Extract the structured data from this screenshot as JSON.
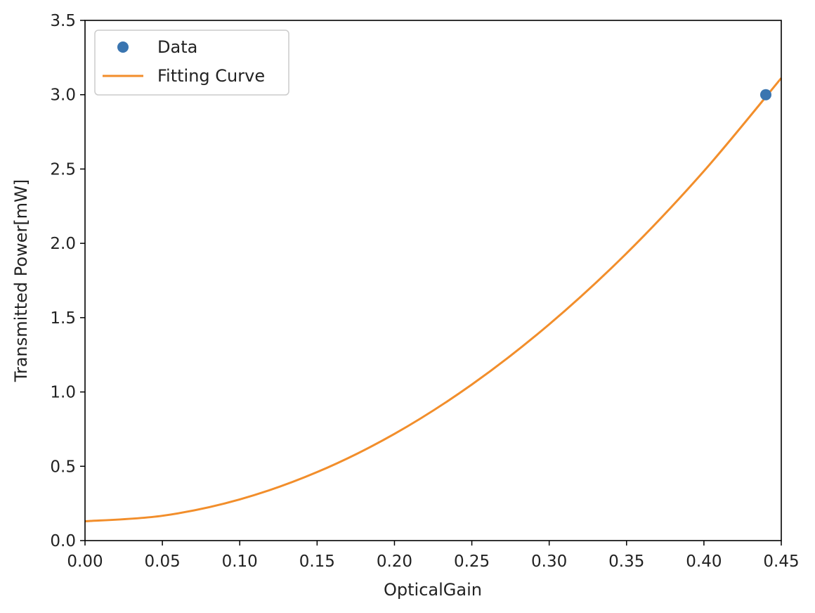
{
  "chart_data": {
    "type": "scatter",
    "title": "",
    "xlabel": "OpticalGain",
    "ylabel": "Transmitted Power[mW]",
    "xlim": [
      0.0,
      0.45
    ],
    "ylim": [
      0.0,
      3.5
    ],
    "xticks": [
      "0.00",
      "0.05",
      "0.10",
      "0.15",
      "0.20",
      "0.25",
      "0.30",
      "0.35",
      "0.40",
      "0.45"
    ],
    "yticks": [
      "0.0",
      "0.5",
      "1.0",
      "1.5",
      "2.0",
      "2.5",
      "3.0",
      "3.5"
    ],
    "grid": false,
    "legend_position": "top-left",
    "series": [
      {
        "name": "Data",
        "kind": "scatter",
        "color": "#3a75b0",
        "x": [
          0.44
        ],
        "y": [
          3.0
        ]
      },
      {
        "name": "Fitting Curve",
        "kind": "line",
        "color": "#f28e2b",
        "x": [
          0.0,
          0.05,
          0.1,
          0.15,
          0.2,
          0.25,
          0.3,
          0.35,
          0.4,
          0.45
        ],
        "y": [
          0.13,
          0.167,
          0.277,
          0.461,
          0.718,
          1.05,
          1.455,
          1.933,
          2.486,
          3.112
        ]
      }
    ]
  }
}
